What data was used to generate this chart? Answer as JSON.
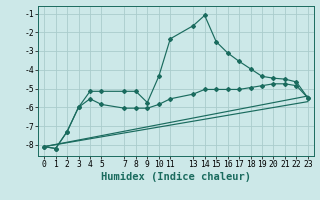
{
  "bg_color": "#cce8e8",
  "grid_color": "#aacccc",
  "line_color": "#1a6b5e",
  "xlabel": "Humidex (Indice chaleur)",
  "xlabel_fontsize": 7.5,
  "tick_fontsize": 5.8,
  "xlim": [
    -0.5,
    23.5
  ],
  "ylim": [
    -8.6,
    -0.6
  ],
  "xticks": [
    0,
    1,
    2,
    3,
    4,
    5,
    7,
    8,
    9,
    10,
    11,
    13,
    14,
    15,
    16,
    17,
    18,
    19,
    20,
    21,
    22,
    23
  ],
  "yticks": [
    -8,
    -7,
    -6,
    -5,
    -4,
    -3,
    -2,
    -1
  ],
  "series1_x": [
    0,
    1,
    2,
    3,
    4,
    5,
    7,
    8,
    9,
    10,
    11,
    13,
    14,
    15,
    16,
    17,
    18,
    19,
    20,
    21,
    22,
    23
  ],
  "series1_y": [
    -8.1,
    -8.2,
    -7.3,
    -6.0,
    -5.15,
    -5.15,
    -5.15,
    -5.15,
    -5.75,
    -4.35,
    -2.35,
    -1.65,
    -1.1,
    -2.5,
    -3.1,
    -3.55,
    -3.95,
    -4.35,
    -4.45,
    -4.5,
    -4.65,
    -5.5
  ],
  "series2_x": [
    0,
    1,
    2,
    3,
    4,
    5,
    7,
    8,
    9,
    10,
    11,
    13,
    14,
    15,
    16,
    17,
    18,
    19,
    20,
    21,
    22,
    23
  ],
  "series2_y": [
    -8.1,
    -8.2,
    -7.3,
    -6.0,
    -5.55,
    -5.85,
    -6.05,
    -6.05,
    -6.05,
    -5.85,
    -5.55,
    -5.3,
    -5.05,
    -5.05,
    -5.05,
    -5.05,
    -4.95,
    -4.85,
    -4.75,
    -4.75,
    -4.85,
    -5.5
  ],
  "line3_x": [
    0,
    23
  ],
  "line3_y": [
    -8.1,
    -5.4
  ],
  "line4_x": [
    0,
    23
  ],
  "line4_y": [
    -8.1,
    -5.7
  ]
}
